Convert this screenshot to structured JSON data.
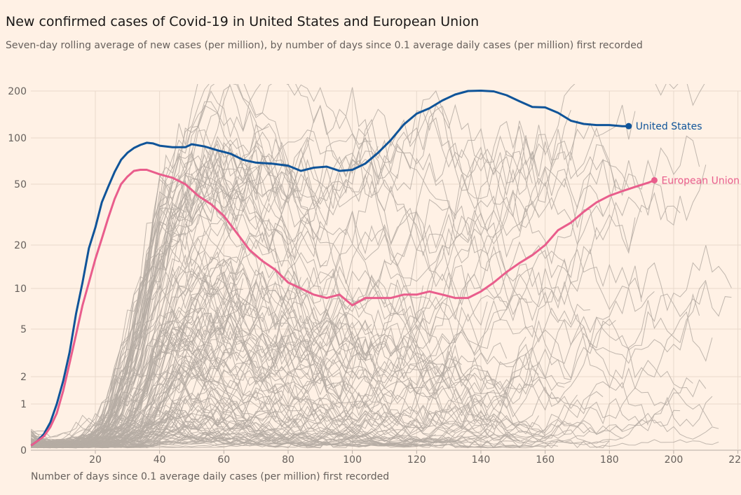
{
  "title": "New confirmed cases of Covid-19 in United States and European Union",
  "subtitle": "Seven-day rolling average of new cases (per million), by number of days since 0.1 average daily cases (per million) first recorded",
  "chart_data": {
    "type": "line",
    "xlabel": "Number of days since 0.1 average daily cases (per million) first recorded",
    "ylabel": "",
    "xlim": [
      0,
      220
    ],
    "ylim": [
      0,
      200
    ],
    "y_scale": "log",
    "grid": true,
    "x_ticks": [
      20,
      40,
      60,
      80,
      100,
      120,
      140,
      160,
      180,
      200,
      220
    ],
    "y_ticks": [
      0,
      1,
      2,
      5,
      10,
      20,
      50,
      100,
      200
    ],
    "colors": {
      "us": "#0f5499",
      "eu": "#e95d8c",
      "background_lines": "#b5aba3",
      "grid": "#e8d9cc"
    },
    "series": [
      {
        "name": "United States",
        "color": "#0f5499",
        "x": [
          0,
          2,
          4,
          6,
          8,
          10,
          12,
          14,
          16,
          18,
          20,
          22,
          24,
          26,
          28,
          30,
          32,
          34,
          36,
          38,
          40,
          44,
          48,
          50,
          54,
          58,
          62,
          66,
          70,
          75,
          80,
          84,
          88,
          92,
          96,
          100,
          104,
          108,
          112,
          116,
          120,
          124,
          128,
          132,
          136,
          140,
          144,
          148,
          152,
          156,
          160,
          164,
          168,
          172,
          176,
          180,
          184,
          186
        ],
        "values": [
          0.1,
          0.2,
          0.35,
          0.6,
          1.0,
          1.8,
          3.2,
          6.5,
          11,
          19,
          26,
          38,
          48,
          60,
          72,
          80,
          86,
          90,
          93,
          92,
          89,
          87,
          87,
          91,
          88,
          83,
          79,
          72,
          69,
          68,
          66,
          61,
          64,
          65,
          61,
          62,
          68,
          80,
          97,
          122,
          143,
          155,
          174,
          190,
          200,
          201,
          199,
          188,
          172,
          158,
          157,
          145,
          129,
          123,
          121,
          121,
          119,
          119
        ]
      },
      {
        "name": "European Union",
        "color": "#e95d8c",
        "x": [
          0,
          2,
          4,
          6,
          8,
          10,
          12,
          14,
          16,
          18,
          20,
          22,
          24,
          26,
          28,
          30,
          32,
          34,
          36,
          40,
          44,
          48,
          52,
          56,
          60,
          64,
          68,
          72,
          76,
          80,
          84,
          88,
          92,
          96,
          100,
          104,
          108,
          112,
          116,
          120,
          124,
          128,
          132,
          136,
          140,
          144,
          148,
          152,
          156,
          160,
          164,
          168,
          172,
          176,
          180,
          184,
          188,
          192,
          194
        ],
        "values": [
          0.1,
          0.2,
          0.3,
          0.5,
          0.8,
          1.4,
          2.6,
          4.5,
          7.5,
          11,
          16,
          22,
          30,
          40,
          50,
          56,
          61,
          62,
          62,
          58,
          55,
          50,
          42,
          37,
          31,
          24,
          18.5,
          15.5,
          13.5,
          11,
          10,
          9,
          8.5,
          9,
          7.5,
          8.5,
          8.5,
          8.5,
          9,
          9,
          9.5,
          9,
          8.5,
          8.5,
          9.5,
          11,
          13,
          15,
          17,
          20,
          25,
          28,
          33,
          38,
          42,
          45,
          48,
          51,
          53
        ]
      }
    ]
  }
}
